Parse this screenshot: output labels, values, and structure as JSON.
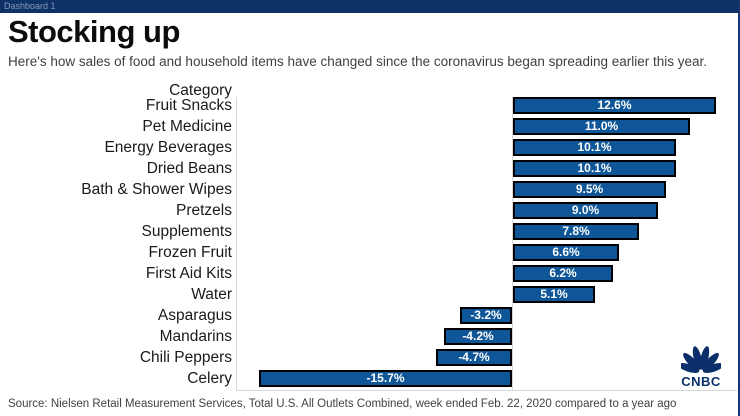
{
  "window": {
    "tab_title": "Dashboard 1"
  },
  "header": {
    "title": "Stocking up",
    "subtitle": "Here's how sales of food and household items have changed since the coronavirus began spreading earlier this year."
  },
  "chart_data": {
    "type": "bar",
    "orientation": "horizontal",
    "column_header": "Category",
    "categories": [
      "Fruit Snacks",
      "Pet Medicine",
      "Energy Beverages",
      "Dried Beans",
      "Bath & Shower Wipes",
      "Pretzels",
      "Supplements",
      "Frozen Fruit",
      "First Aid Kits",
      "Water",
      "Asparagus",
      "Mandarins",
      "Chili Peppers",
      "Celery"
    ],
    "values": [
      12.6,
      11.0,
      10.1,
      10.1,
      9.5,
      9.0,
      7.8,
      6.6,
      6.2,
      5.1,
      -3.2,
      -4.2,
      -4.7,
      -15.7
    ],
    "value_labels": [
      "12.6%",
      "11.0%",
      "10.1%",
      "10.1%",
      "9.5%",
      "9.0%",
      "7.8%",
      "6.6%",
      "6.2%",
      "5.1%",
      "-3.2%",
      "-4.2%",
      "-4.7%",
      "-15.7%"
    ],
    "unit": "%",
    "xlim": [
      -16,
      13
    ],
    "grid": "zero-line-only",
    "legend": "none",
    "bar_color": "#0e5697",
    "bar_border_color": "#000000",
    "value_label_color": "#ffffff"
  },
  "footer": {
    "source": "Source: Nielsen Retail Measurement Services, Total U.S. All Outlets Combined, week ended Feb. 22, 2020 compared to a year ago"
  },
  "branding": {
    "logo_text": "CNBC",
    "logo_color": "#0b2f6b"
  }
}
